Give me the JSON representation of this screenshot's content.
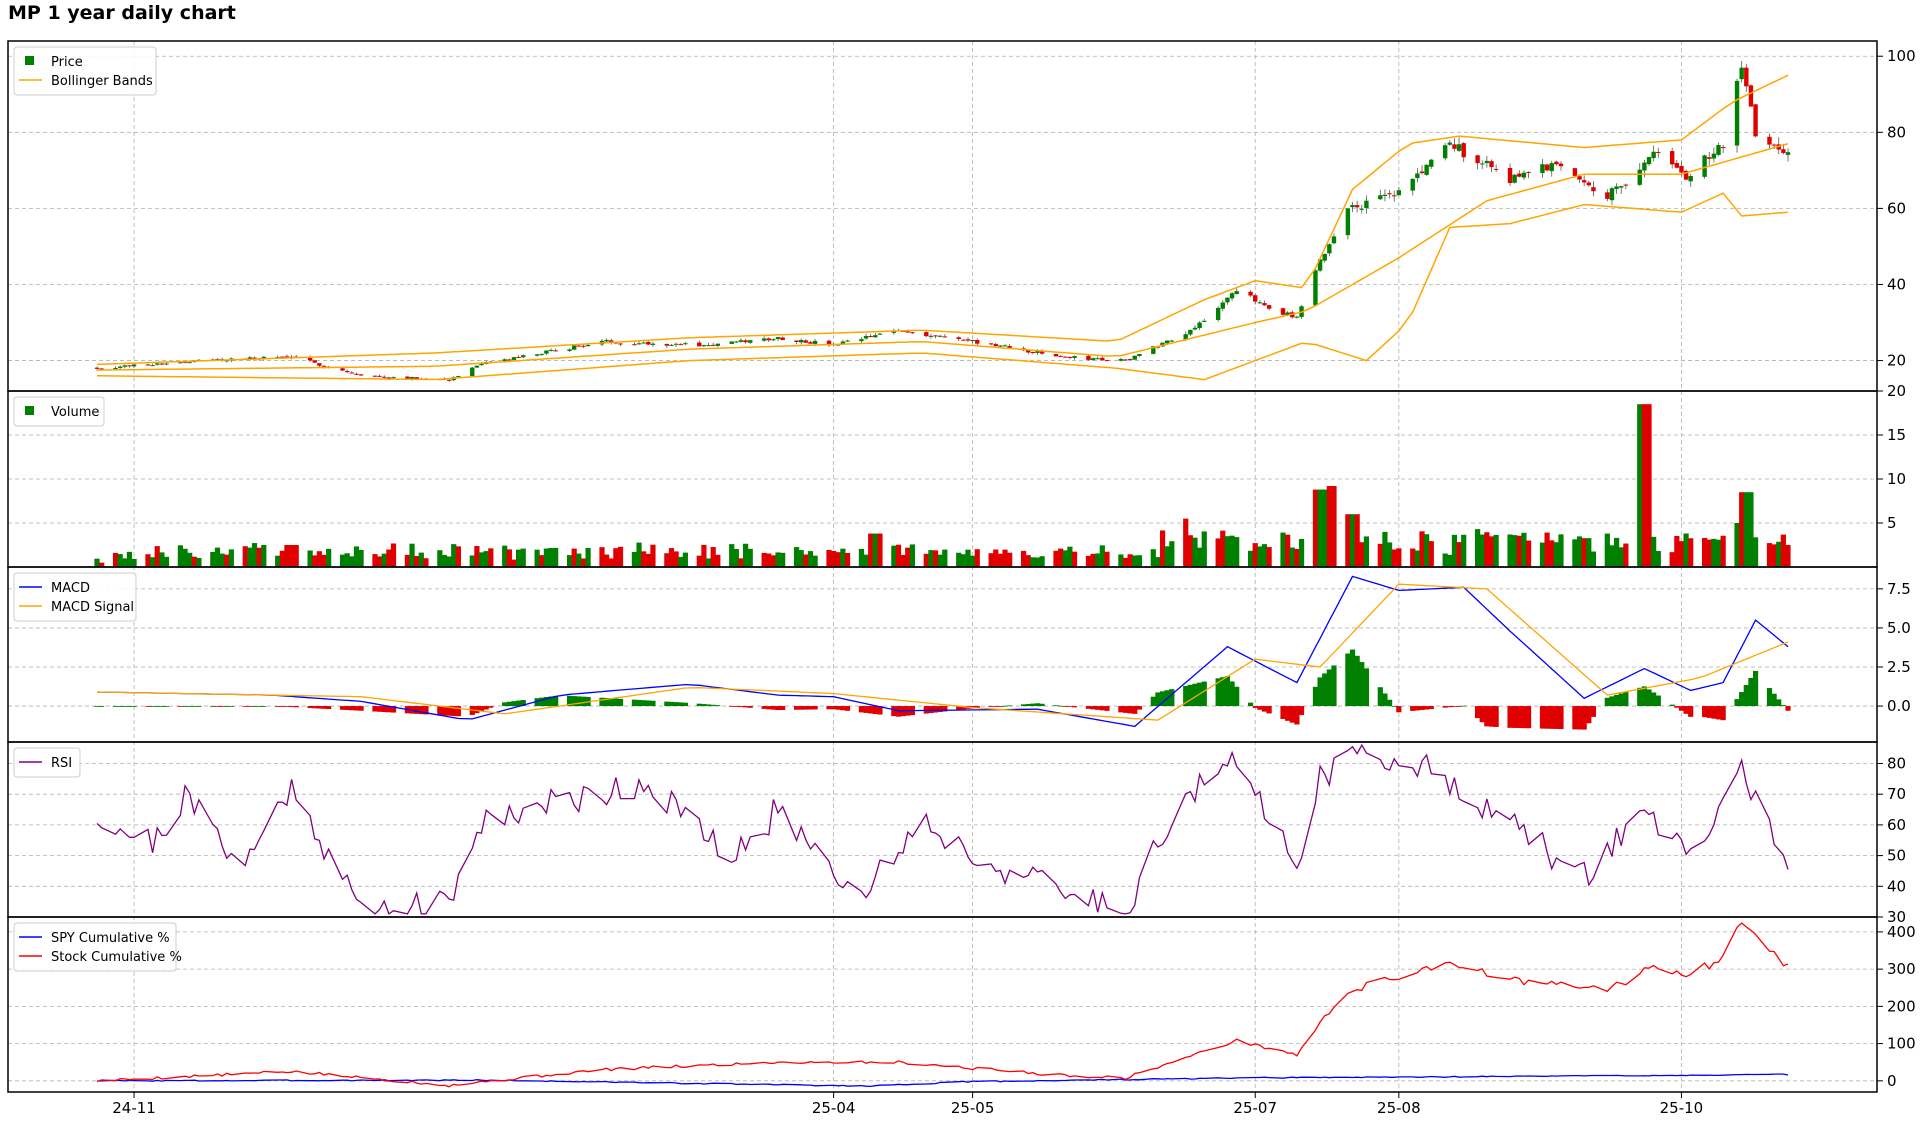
{
  "title": "MP 1 year daily chart",
  "colors": {
    "up": "#008000",
    "down": "#e00000",
    "bb": "#ffa500",
    "macd": "#0000ff",
    "signal": "#ffa500",
    "rsi": "#800080",
    "spy": "#0000ff",
    "stock": "#ff0000",
    "grid": "#b0b0b0"
  },
  "chart_data": {
    "type": "line",
    "x_axis": {
      "start": "2024-10-24",
      "end": "2025-10-24",
      "tick_labels": [
        "24-11",
        "25-04",
        "25-05",
        "25-07",
        "25-08",
        "25-10"
      ],
      "tick_dates": [
        "2024-11-01",
        "2025-04-01",
        "2025-05-01",
        "2025-07-01",
        "2025-08-01",
        "2025-10-01"
      ]
    },
    "panels": [
      {
        "id": "price",
        "type": "candlestick",
        "ylim": [
          12,
          104
        ],
        "yticks": [
          20,
          40,
          60,
          80,
          100
        ],
        "legend": [
          "Price",
          "Bollinger Bands"
        ],
        "close": [
          {
            "x": "2024-10-24",
            "y": 18
          },
          {
            "x": "2024-11-15",
            "y": 20
          },
          {
            "x": "2024-12-05",
            "y": 21
          },
          {
            "x": "2024-12-20",
            "y": 16
          },
          {
            "x": "2025-01-08",
            "y": 15
          },
          {
            "x": "2025-01-15",
            "y": 19
          },
          {
            "x": "2025-02-10",
            "y": 25
          },
          {
            "x": "2025-03-05",
            "y": 24
          },
          {
            "x": "2025-03-20",
            "y": 26
          },
          {
            "x": "2025-04-01",
            "y": 24
          },
          {
            "x": "2025-04-15",
            "y": 28
          },
          {
            "x": "2025-05-01",
            "y": 25
          },
          {
            "x": "2025-05-20",
            "y": 21
          },
          {
            "x": "2025-06-03",
            "y": 20
          },
          {
            "x": "2025-06-17",
            "y": 28
          },
          {
            "x": "2025-06-27",
            "y": 38
          },
          {
            "x": "2025-07-10",
            "y": 31
          },
          {
            "x": "2025-07-15",
            "y": 46
          },
          {
            "x": "2025-07-21",
            "y": 60
          },
          {
            "x": "2025-08-01",
            "y": 64
          },
          {
            "x": "2025-08-12",
            "y": 77
          },
          {
            "x": "2025-08-25",
            "y": 68
          },
          {
            "x": "2025-09-05",
            "y": 72
          },
          {
            "x": "2025-09-15",
            "y": 63
          },
          {
            "x": "2025-09-26",
            "y": 75
          },
          {
            "x": "2025-10-02",
            "y": 68
          },
          {
            "x": "2025-10-10",
            "y": 77
          },
          {
            "x": "2025-10-14",
            "y": 97
          },
          {
            "x": "2025-10-17",
            "y": 80
          },
          {
            "x": "2025-10-24",
            "y": 74
          }
        ],
        "bb_upper": [
          {
            "x": "2024-10-24",
            "y": 19
          },
          {
            "x": "2025-01-05",
            "y": 22
          },
          {
            "x": "2025-03-01",
            "y": 26
          },
          {
            "x": "2025-04-20",
            "y": 28
          },
          {
            "x": "2025-06-01",
            "y": 25
          },
          {
            "x": "2025-06-20",
            "y": 36
          },
          {
            "x": "2025-07-01",
            "y": 41
          },
          {
            "x": "2025-07-12",
            "y": 39
          },
          {
            "x": "2025-07-22",
            "y": 65
          },
          {
            "x": "2025-08-03",
            "y": 77
          },
          {
            "x": "2025-08-14",
            "y": 79
          },
          {
            "x": "2025-09-10",
            "y": 76
          },
          {
            "x": "2025-10-01",
            "y": 78
          },
          {
            "x": "2025-10-12",
            "y": 88
          },
          {
            "x": "2025-10-24",
            "y": 95
          }
        ],
        "bb_middle": [
          {
            "x": "2024-10-24",
            "y": 17.5
          },
          {
            "x": "2025-01-05",
            "y": 18.5
          },
          {
            "x": "2025-03-01",
            "y": 23
          },
          {
            "x": "2025-04-20",
            "y": 25
          },
          {
            "x": "2025-06-01",
            "y": 21
          },
          {
            "x": "2025-07-01",
            "y": 30
          },
          {
            "x": "2025-07-12",
            "y": 33
          },
          {
            "x": "2025-08-01",
            "y": 47
          },
          {
            "x": "2025-08-20",
            "y": 62
          },
          {
            "x": "2025-09-10",
            "y": 69
          },
          {
            "x": "2025-10-01",
            "y": 69
          },
          {
            "x": "2025-10-24",
            "y": 77
          }
        ],
        "bb_lower": [
          {
            "x": "2024-10-24",
            "y": 16
          },
          {
            "x": "2025-01-05",
            "y": 15
          },
          {
            "x": "2025-03-01",
            "y": 20
          },
          {
            "x": "2025-04-20",
            "y": 22
          },
          {
            "x": "2025-06-01",
            "y": 18
          },
          {
            "x": "2025-06-20",
            "y": 15
          },
          {
            "x": "2025-07-12",
            "y": 25
          },
          {
            "x": "2025-07-25",
            "y": 20
          },
          {
            "x": "2025-08-03",
            "y": 30
          },
          {
            "x": "2025-08-12",
            "y": 55
          },
          {
            "x": "2025-08-25",
            "y": 56
          },
          {
            "x": "2025-09-10",
            "y": 61
          },
          {
            "x": "2025-10-01",
            "y": 59
          },
          {
            "x": "2025-10-10",
            "y": 64
          },
          {
            "x": "2025-10-14",
            "y": 58
          },
          {
            "x": "2025-10-24",
            "y": 59
          }
        ]
      },
      {
        "id": "volume",
        "type": "bar",
        "ylim": [
          0,
          20
        ],
        "yticks": [
          5,
          10,
          15,
          20
        ],
        "legend": [
          "Volume"
        ],
        "values": [
          {
            "x": "2024-10-24",
            "y": 0.5
          },
          {
            "x": "2024-12-05",
            "y": 2.5
          },
          {
            "x": "2025-01-20",
            "y": 2
          },
          {
            "x": "2025-04-01",
            "y": 1.5
          },
          {
            "x": "2025-04-10",
            "y": 3.8
          },
          {
            "x": "2025-06-15",
            "y": 5.5
          },
          {
            "x": "2025-06-25",
            "y": 3.5
          },
          {
            "x": "2025-07-15",
            "y": 8.8
          },
          {
            "x": "2025-07-18",
            "y": 9.2
          },
          {
            "x": "2025-07-22",
            "y": 6
          },
          {
            "x": "2025-09-23",
            "y": 18.5
          },
          {
            "x": "2025-10-13",
            "y": 5
          },
          {
            "x": "2025-10-15",
            "y": 8.5
          },
          {
            "x": "2025-10-24",
            "y": 2.5
          }
        ]
      },
      {
        "id": "macd",
        "type": "line",
        "ylim": [
          -2.3,
          8.9
        ],
        "yticks": [
          0.0,
          2.5,
          5.0,
          7.5
        ],
        "ytick_labels": [
          "0.0",
          "2.5",
          "5.0",
          "7.5"
        ],
        "legend": [
          "MACD",
          "MACD Signal"
        ],
        "macd": [
          {
            "x": "2024-10-24",
            "y": 0.9
          },
          {
            "x": "2024-12-01",
            "y": 0.7
          },
          {
            "x": "2024-12-20",
            "y": 0.3
          },
          {
            "x": "2025-01-12",
            "y": -0.9
          },
          {
            "x": "2025-02-01",
            "y": 0.7
          },
          {
            "x": "2025-03-01",
            "y": 1.4
          },
          {
            "x": "2025-03-20",
            "y": 0.7
          },
          {
            "x": "2025-04-01",
            "y": 0.6
          },
          {
            "x": "2025-04-15",
            "y": -0.3
          },
          {
            "x": "2025-05-15",
            "y": -0.2
          },
          {
            "x": "2025-06-05",
            "y": -1.3
          },
          {
            "x": "2025-06-25",
            "y": 3.8
          },
          {
            "x": "2025-07-10",
            "y": 1.5
          },
          {
            "x": "2025-07-22",
            "y": 8.3
          },
          {
            "x": "2025-08-01",
            "y": 7.4
          },
          {
            "x": "2025-08-15",
            "y": 7.6
          },
          {
            "x": "2025-08-25",
            "y": 4.8
          },
          {
            "x": "2025-09-10",
            "y": 0.5
          },
          {
            "x": "2025-09-23",
            "y": 2.4
          },
          {
            "x": "2025-10-03",
            "y": 1.0
          },
          {
            "x": "2025-10-10",
            "y": 1.5
          },
          {
            "x": "2025-10-17",
            "y": 5.5
          },
          {
            "x": "2025-10-24",
            "y": 3.8
          }
        ],
        "signal": [
          {
            "x": "2024-10-24",
            "y": 0.9
          },
          {
            "x": "2024-12-20",
            "y": 0.6
          },
          {
            "x": "2025-01-20",
            "y": -0.5
          },
          {
            "x": "2025-03-01",
            "y": 1.2
          },
          {
            "x": "2025-04-01",
            "y": 0.8
          },
          {
            "x": "2025-05-01",
            "y": -0.1
          },
          {
            "x": "2025-06-10",
            "y": -0.9
          },
          {
            "x": "2025-07-01",
            "y": 3.0
          },
          {
            "x": "2025-07-15",
            "y": 2.5
          },
          {
            "x": "2025-08-01",
            "y": 7.8
          },
          {
            "x": "2025-08-20",
            "y": 7.5
          },
          {
            "x": "2025-09-15",
            "y": 0.7
          },
          {
            "x": "2025-10-05",
            "y": 1.8
          },
          {
            "x": "2025-10-24",
            "y": 4.1
          }
        ]
      },
      {
        "id": "rsi",
        "type": "line",
        "ylim": [
          30,
          87
        ],
        "yticks": [
          30,
          40,
          50,
          60,
          70,
          80
        ],
        "legend": [
          "RSI"
        ],
        "values": [
          {
            "x": "2024-10-24",
            "y": 63
          },
          {
            "x": "2024-11-05",
            "y": 54
          },
          {
            "x": "2024-11-12",
            "y": 69
          },
          {
            "x": "2024-11-25",
            "y": 47
          },
          {
            "x": "2024-12-05",
            "y": 73
          },
          {
            "x": "2024-12-20",
            "y": 32
          },
          {
            "x": "2025-01-08",
            "y": 34
          },
          {
            "x": "2025-01-15",
            "y": 62
          },
          {
            "x": "2025-02-20",
            "y": 74
          },
          {
            "x": "2025-03-10",
            "y": 48
          },
          {
            "x": "2025-03-20",
            "y": 65
          },
          {
            "x": "2025-04-07",
            "y": 37
          },
          {
            "x": "2025-04-20",
            "y": 62
          },
          {
            "x": "2025-05-01",
            "y": 50
          },
          {
            "x": "2025-05-20",
            "y": 38
          },
          {
            "x": "2025-06-03",
            "y": 33
          },
          {
            "x": "2025-06-15",
            "y": 68
          },
          {
            "x": "2025-06-27",
            "y": 80
          },
          {
            "x": "2025-07-10",
            "y": 49
          },
          {
            "x": "2025-07-15",
            "y": 75
          },
          {
            "x": "2025-07-25",
            "y": 85
          },
          {
            "x": "2025-08-12",
            "y": 75
          },
          {
            "x": "2025-08-25",
            "y": 60
          },
          {
            "x": "2025-09-10",
            "y": 43
          },
          {
            "x": "2025-09-23",
            "y": 66
          },
          {
            "x": "2025-10-03",
            "y": 48
          },
          {
            "x": "2025-10-14",
            "y": 78
          },
          {
            "x": "2025-10-24",
            "y": 48
          }
        ]
      },
      {
        "id": "cumulative",
        "type": "line",
        "ylim": [
          -30,
          440
        ],
        "yticks": [
          0,
          100,
          200,
          300,
          400
        ],
        "legend": [
          "SPY Cumulative %",
          "Stock Cumulative %"
        ],
        "spy": [
          {
            "x": "2024-10-24",
            "y": 0
          },
          {
            "x": "2025-01-15",
            "y": 2
          },
          {
            "x": "2025-04-08",
            "y": -14
          },
          {
            "x": "2025-05-01",
            "y": -2
          },
          {
            "x": "2025-07-01",
            "y": 8
          },
          {
            "x": "2025-08-01",
            "y": 10
          },
          {
            "x": "2025-10-24",
            "y": 17
          }
        ],
        "stock": [
          {
            "x": "2024-10-24",
            "y": 0
          },
          {
            "x": "2024-12-05",
            "y": 25
          },
          {
            "x": "2025-01-08",
            "y": -12
          },
          {
            "x": "2025-02-10",
            "y": 30
          },
          {
            "x": "2025-03-20",
            "y": 50
          },
          {
            "x": "2025-04-15",
            "y": 50
          },
          {
            "x": "2025-05-20",
            "y": 15
          },
          {
            "x": "2025-06-03",
            "y": 8
          },
          {
            "x": "2025-06-27",
            "y": 108
          },
          {
            "x": "2025-07-10",
            "y": 70
          },
          {
            "x": "2025-07-15",
            "y": 155
          },
          {
            "x": "2025-07-21",
            "y": 240
          },
          {
            "x": "2025-08-12",
            "y": 320
          },
          {
            "x": "2025-08-25",
            "y": 270
          },
          {
            "x": "2025-09-15",
            "y": 245
          },
          {
            "x": "2025-09-26",
            "y": 310
          },
          {
            "x": "2025-10-02",
            "y": 280
          },
          {
            "x": "2025-10-10",
            "y": 330
          },
          {
            "x": "2025-10-14",
            "y": 440
          },
          {
            "x": "2025-10-20",
            "y": 360
          },
          {
            "x": "2025-10-24",
            "y": 305
          }
        ]
      }
    ]
  }
}
